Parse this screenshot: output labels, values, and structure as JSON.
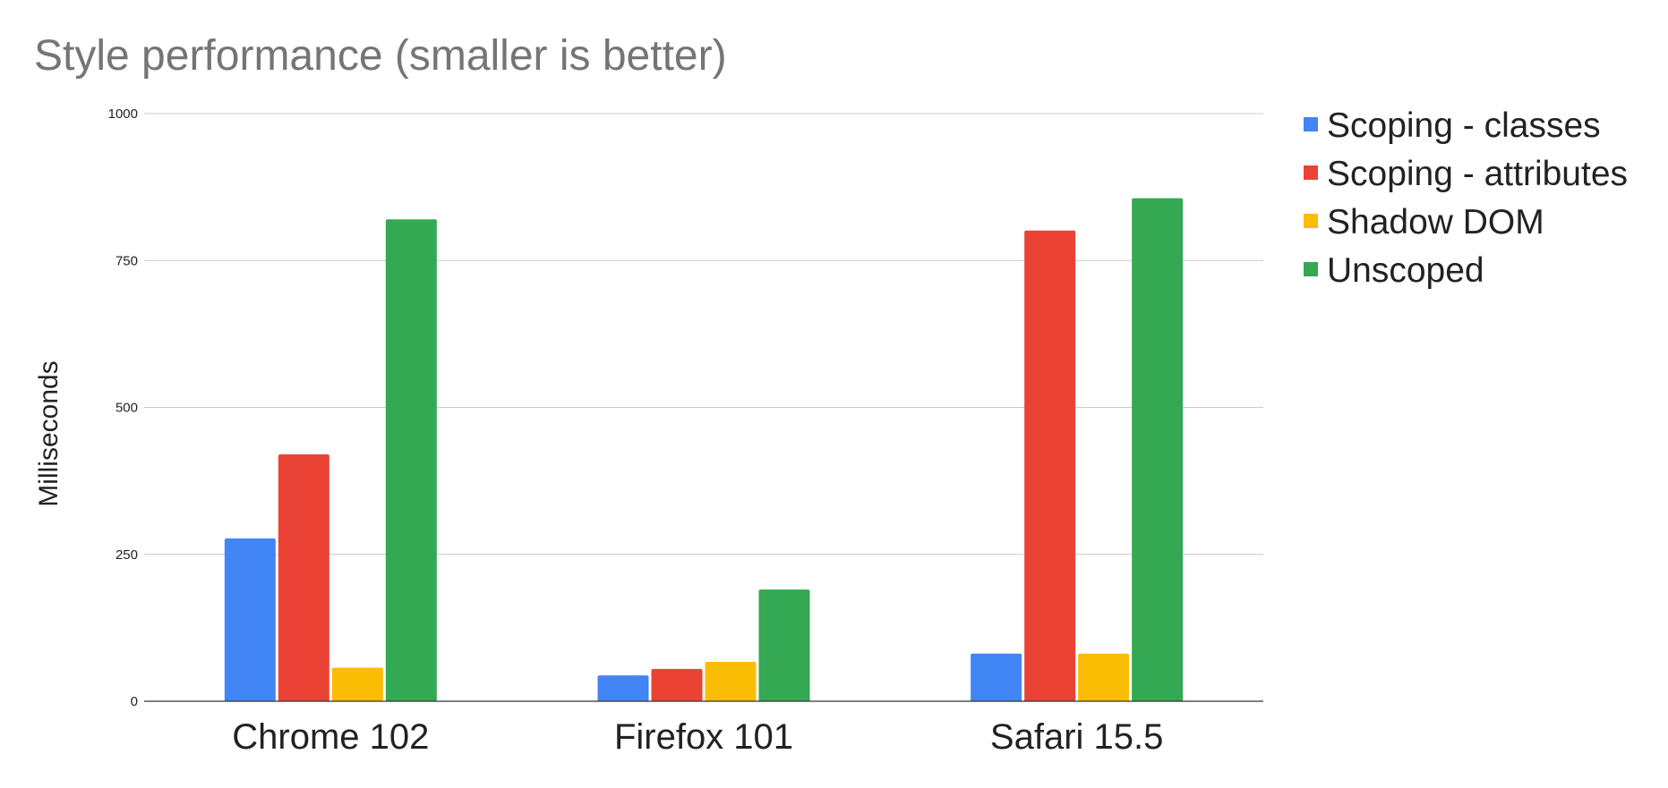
{
  "chart_data": {
    "type": "bar",
    "title": "Style performance (smaller is better)",
    "xlabel": "",
    "ylabel": "Milliseconds",
    "categories": [
      "Chrome 102",
      "Firefox 101",
      "Safari 15.5"
    ],
    "series": [
      {
        "name": "Scoping - classes",
        "color": "#4285f4",
        "values": [
          277,
          44,
          81
        ]
      },
      {
        "name": "Scoping - attributes",
        "color": "#ea4335",
        "values": [
          420,
          55,
          801
        ]
      },
      {
        "name": "Shadow DOM",
        "color": "#fbbc04",
        "values": [
          57,
          67,
          81
        ]
      },
      {
        "name": "Unscoped",
        "color": "#34a853",
        "values": [
          820,
          190,
          856
        ]
      }
    ],
    "ylim": [
      0,
      1000
    ],
    "yticks": [
      0,
      250,
      500,
      750,
      1000
    ],
    "ytick_labels": [
      "0",
      "250",
      "500",
      "750",
      "1000"
    ],
    "grid": true,
    "legend_position": "right"
  }
}
